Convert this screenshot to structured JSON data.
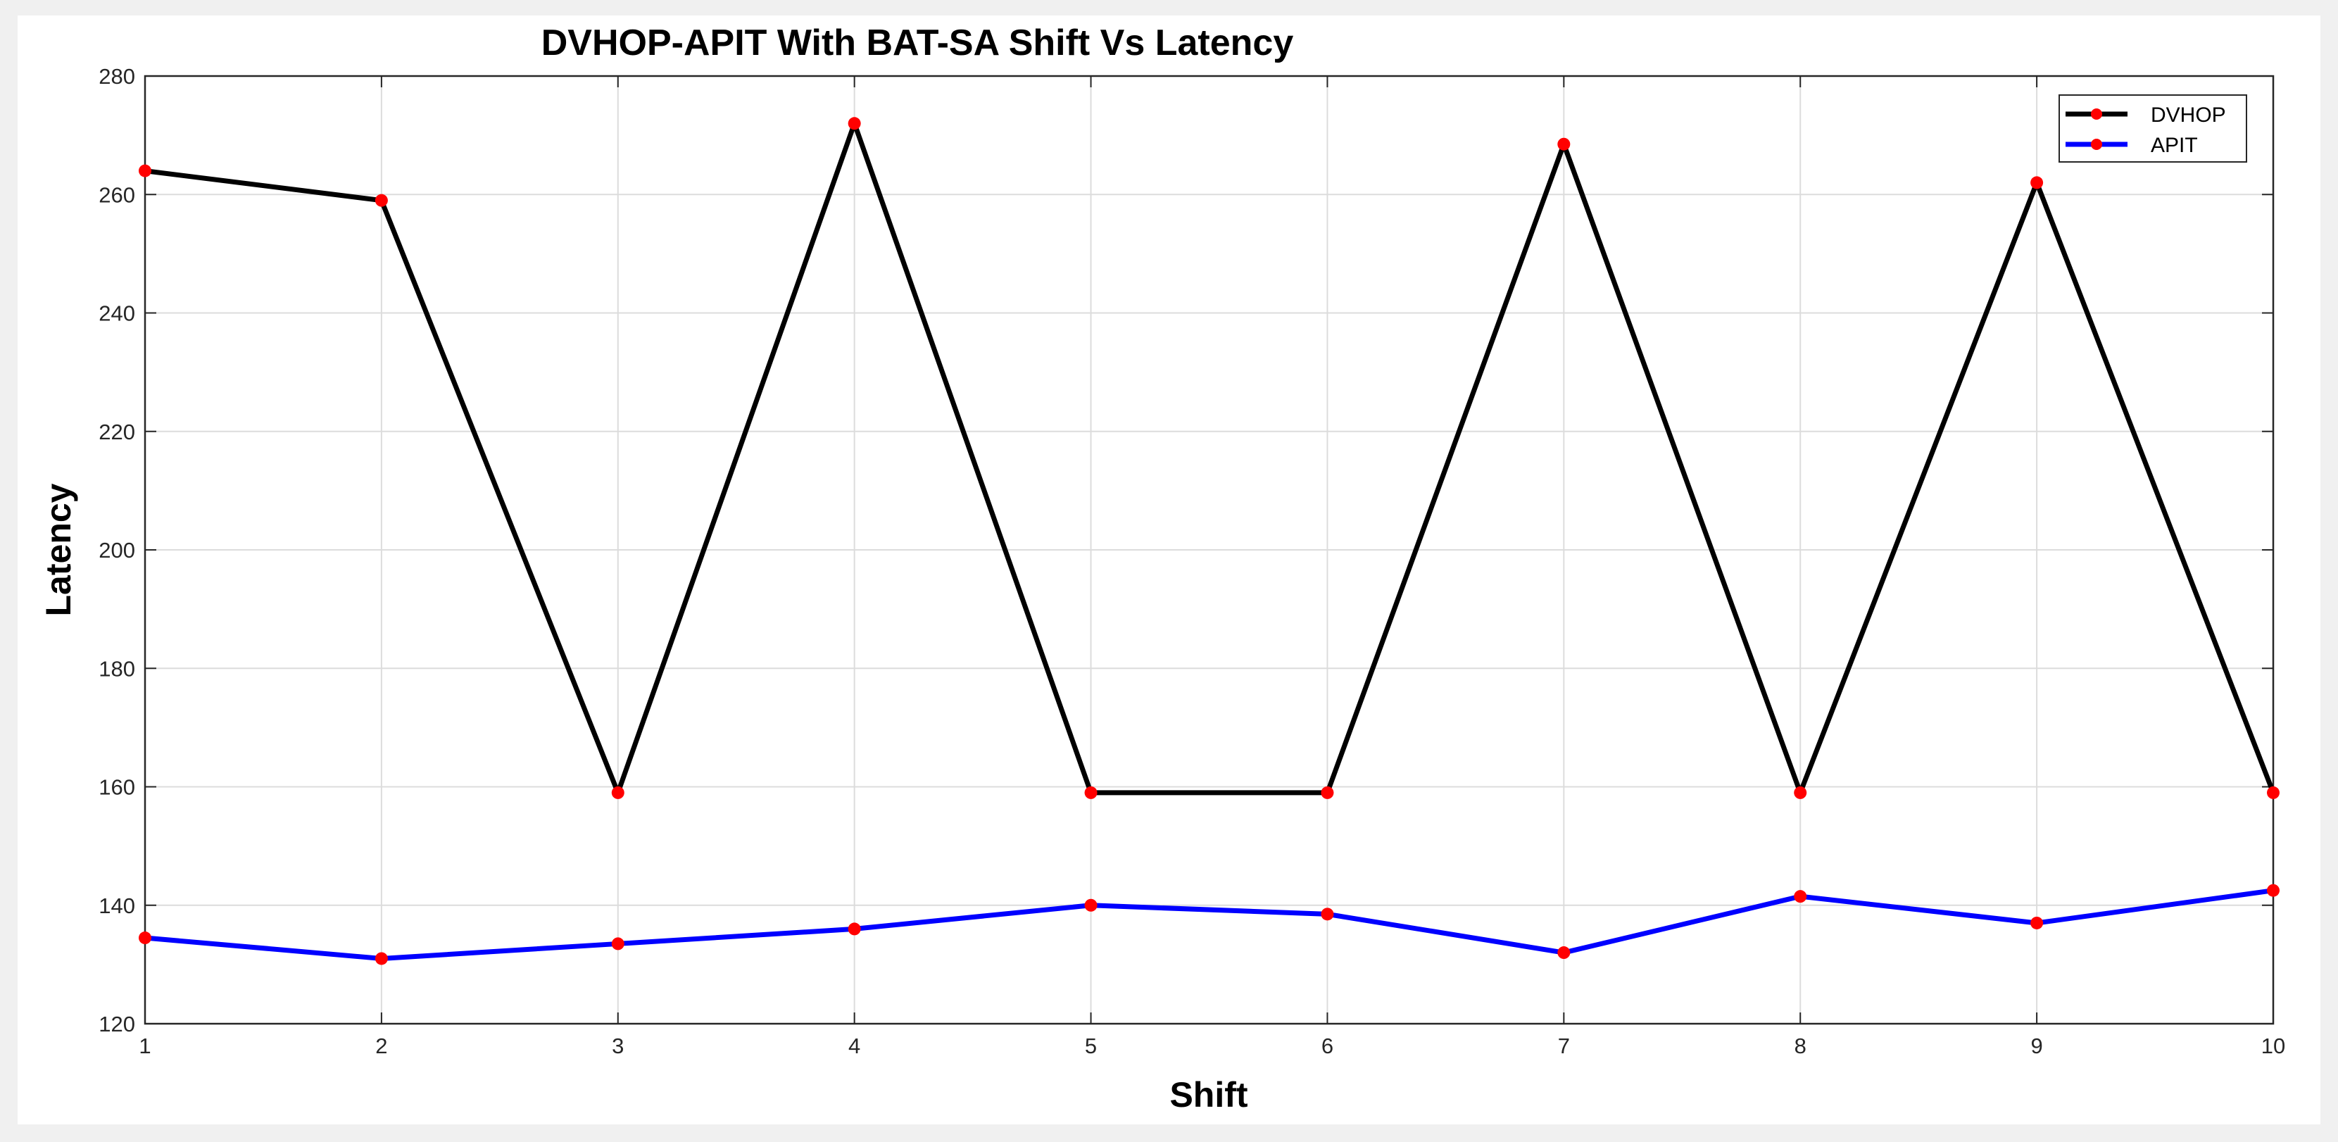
{
  "chart_data": {
    "type": "line",
    "title": "DVHOP-APIT With BAT-SA Shift Vs Latency",
    "xlabel": "Shift",
    "ylabel": "Latency",
    "x": [
      1,
      2,
      3,
      4,
      5,
      6,
      7,
      8,
      9,
      10
    ],
    "xlim": [
      1,
      10
    ],
    "ylim": [
      120,
      280
    ],
    "x_ticks": [
      "1",
      "2",
      "3",
      "4",
      "5",
      "6",
      "7",
      "8",
      "9",
      "10"
    ],
    "y_ticks": [
      "120",
      "140",
      "160",
      "180",
      "200",
      "220",
      "240",
      "260",
      "280"
    ],
    "grid": true,
    "legend_position": "top-right",
    "marker_color": "#ff0000",
    "series": [
      {
        "name": "DVHOP",
        "color": "#000000",
        "values": [
          264,
          259,
          159,
          272,
          159,
          159,
          268.5,
          159,
          262,
          159
        ]
      },
      {
        "name": "APIT",
        "color": "#0000ff",
        "values": [
          134.5,
          131,
          133.5,
          136,
          140,
          138.5,
          132,
          141.5,
          137,
          142.5
        ]
      }
    ]
  }
}
